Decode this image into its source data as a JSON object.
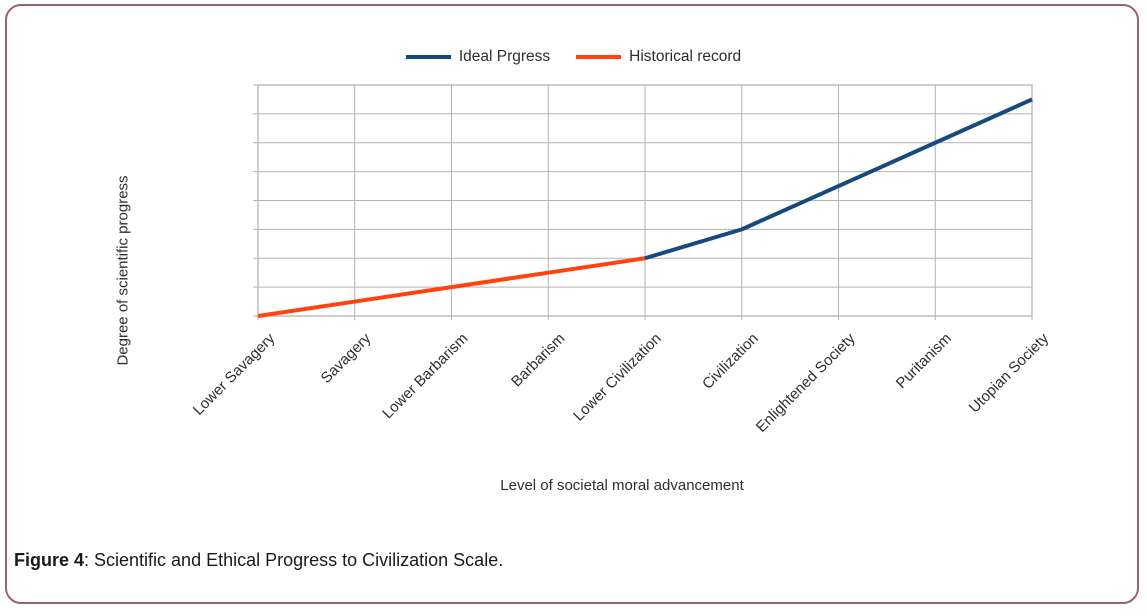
{
  "figure": {
    "caption_label": "Figure 4",
    "caption_text": ": Scientific and Ethical Progress to Civilization Scale."
  },
  "colors": {
    "ideal_progress_line": "#17497E",
    "historical_record_line": "#FF420E",
    "gridlines": "#b3b3b3",
    "panel_border": "#9d5e7d",
    "text": "#2e2e2e"
  },
  "chart_data": {
    "type": "line",
    "title": "",
    "xlabel": "Level of societal moral advancement",
    "ylabel": "Degree of scientific progress",
    "categories": [
      "Lower Savagery",
      "Savagery",
      "Lower Barbarism",
      "Barbarism",
      "Lower Civilization",
      "Civilization",
      "Enlightened Society",
      "Puritanism",
      "Utopian Society"
    ],
    "series": [
      {
        "name": "Ideal Prgress",
        "color": "#17497E",
        "x_index": [
          4,
          5,
          6,
          7,
          8
        ],
        "values": [
          2,
          3,
          4.5,
          6,
          7.5
        ]
      },
      {
        "name": "Historical record",
        "color": "#FF420E",
        "x_index": [
          0,
          1,
          2,
          3,
          4
        ],
        "values": [
          0,
          0.5,
          1,
          1.5,
          2
        ]
      }
    ],
    "ylim": [
      0,
      8
    ],
    "y_gridline_step": 1,
    "y_tick_labels_visible": false,
    "grid": true,
    "legend_position": "top"
  }
}
